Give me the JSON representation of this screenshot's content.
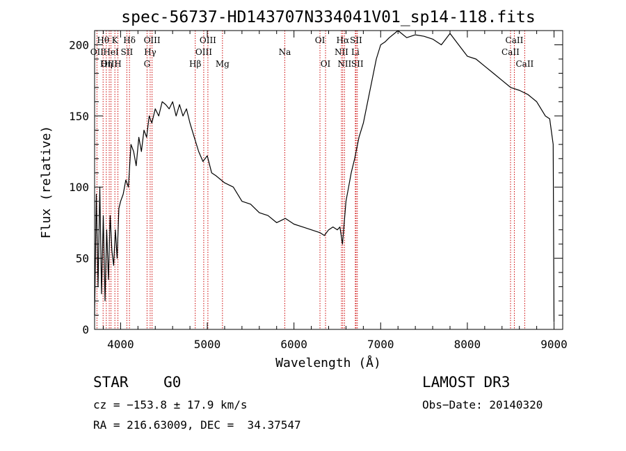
{
  "chart_data": {
    "type": "line",
    "title": "spec-56737-HD143707N334041V01_sp14-118.fits",
    "xlabel": "Wavelength (Å)",
    "ylabel": "Flux (relative)",
    "xlim": [
      3700,
      9100
    ],
    "ylim": [
      0,
      210
    ],
    "xticks": [
      4000,
      5000,
      6000,
      7000,
      8000,
      9000
    ],
    "xtick_labels": [
      "4000",
      "5000",
      "6000",
      "7000",
      "8000",
      "9000"
    ],
    "yticks": [
      0,
      50,
      100,
      150,
      200
    ],
    "ytick_labels": [
      "0",
      "50",
      "100",
      "150",
      "200"
    ],
    "series": [
      {
        "name": "spectrum",
        "x": [
          3700,
          3720,
          3740,
          3760,
          3780,
          3800,
          3820,
          3840,
          3860,
          3880,
          3900,
          3920,
          3940,
          3960,
          3980,
          4000,
          4030,
          4060,
          4090,
          4120,
          4150,
          4180,
          4210,
          4240,
          4270,
          4300,
          4330,
          4360,
          4400,
          4440,
          4480,
          4520,
          4560,
          4600,
          4640,
          4680,
          4720,
          4760,
          4800,
          4850,
          4900,
          4950,
          5000,
          5050,
          5100,
          5200,
          5300,
          5400,
          5500,
          5600,
          5700,
          5800,
          5900,
          6000,
          6100,
          6200,
          6300,
          6350,
          6400,
          6450,
          6500,
          6530,
          6560,
          6580,
          6600,
          6630,
          6660,
          6700,
          6750,
          6800,
          6850,
          6900,
          6950,
          7000,
          7050,
          7100,
          7200,
          7300,
          7400,
          7500,
          7600,
          7700,
          7800,
          7900,
          8000,
          8100,
          8200,
          8300,
          8400,
          8500,
          8600,
          8700,
          8800,
          8850,
          8900,
          8950,
          8990,
          9000
        ],
        "y": [
          10,
          95,
          30,
          100,
          25,
          80,
          20,
          70,
          35,
          80,
          55,
          45,
          70,
          50,
          85,
          90,
          95,
          105,
          100,
          130,
          125,
          115,
          135,
          125,
          140,
          135,
          150,
          145,
          155,
          150,
          160,
          158,
          155,
          160,
          150,
          158,
          150,
          155,
          145,
          135,
          125,
          118,
          122,
          110,
          108,
          103,
          100,
          90,
          88,
          82,
          80,
          75,
          78,
          74,
          72,
          70,
          68,
          66,
          70,
          72,
          70,
          72,
          60,
          75,
          90,
          100,
          110,
          120,
          135,
          145,
          160,
          175,
          190,
          200,
          202,
          205,
          210,
          205,
          207,
          206,
          204,
          200,
          208,
          200,
          192,
          190,
          185,
          180,
          175,
          170,
          168,
          165,
          160,
          155,
          150,
          148,
          130,
          5
        ]
      }
    ],
    "lines": [
      {
        "name": "Hθ",
        "x": 3798,
        "row": 1
      },
      {
        "name": "OII",
        "x": 3727,
        "row": 2
      },
      {
        "name": "OIII",
        "x": 3869,
        "row": 3
      },
      {
        "name": "K",
        "x": 3934,
        "row": 1
      },
      {
        "name": "HeI",
        "x": 3889,
        "row": 2
      },
      {
        "name": "Hη",
        "x": 3835,
        "row": 3
      },
      {
        "name": "SII",
        "x": 4072,
        "row": 2
      },
      {
        "name": "H",
        "x": 3969,
        "row": 3
      },
      {
        "name": "Hδ",
        "x": 4102,
        "row": 1
      },
      {
        "name": "OIII",
        "x": 4363,
        "row": 1
      },
      {
        "name": "Hγ",
        "x": 4341,
        "row": 2
      },
      {
        "name": "G",
        "x": 4305,
        "row": 3
      },
      {
        "name": "OIII",
        "x": 5007,
        "row": 1
      },
      {
        "name": "OIII",
        "x": 4959,
        "row": 2
      },
      {
        "name": "Hβ",
        "x": 4861,
        "row": 3
      },
      {
        "name": "Mg",
        "x": 5175,
        "row": 3
      },
      {
        "name": "Na",
        "x": 5894,
        "row": 2
      },
      {
        "name": "OI",
        "x": 6300,
        "row": 1
      },
      {
        "name": "OI",
        "x": 6364,
        "row": 3
      },
      {
        "name": "Hα",
        "x": 6563,
        "row": 1
      },
      {
        "name": "SII",
        "x": 6716,
        "row": 1
      },
      {
        "name": "NII",
        "x": 6548,
        "row": 2
      },
      {
        "name": "Li",
        "x": 6708,
        "row": 2
      },
      {
        "name": "NII",
        "x": 6583,
        "row": 3
      },
      {
        "name": "SII",
        "x": 6731,
        "row": 3
      },
      {
        "name": "CaII",
        "x": 8542,
        "row": 1
      },
      {
        "name": "CaII",
        "x": 8498,
        "row": 2
      },
      {
        "name": "CaII",
        "x": 8662,
        "row": 3
      }
    ]
  },
  "info": {
    "class": "STAR    G0",
    "cz": "cz = −153.8 ± 17.9 km/s",
    "radec": "RA = 216.63009, DEC =  34.37547",
    "survey": "LAMOST DR3",
    "obs_date": "Obs−Date: 20140320"
  },
  "colors": {
    "line_marker": "#cc0000",
    "spectrum": "#000000",
    "axis": "#000000"
  }
}
